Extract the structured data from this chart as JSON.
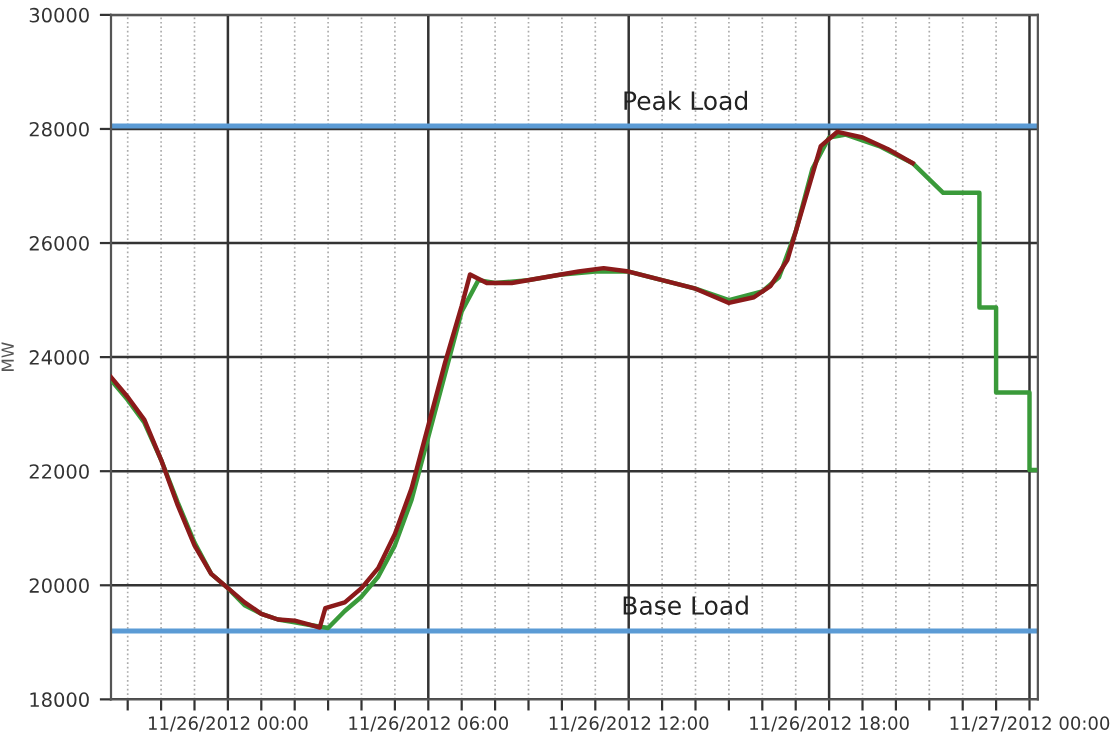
{
  "chart_data": {
    "type": "line",
    "ylabel": "MW",
    "ylim": [
      18000,
      30000
    ],
    "yticks": [
      18000,
      20000,
      22000,
      24000,
      26000,
      28000,
      30000
    ],
    "xlim": [
      "2012-11-25T20:30",
      "2012-11-27T00:15"
    ],
    "xticks": [
      {
        "value": "2012-11-25T21:00",
        "label": null
      },
      {
        "value": "2012-11-25T22:00",
        "label": null
      },
      {
        "value": "2012-11-25T23:00",
        "label": null
      },
      {
        "value": "2012-11-26T00:00",
        "label": "11/26/2012 00:00"
      },
      {
        "value": "2012-11-26T01:00",
        "label": null
      },
      {
        "value": "2012-11-26T02:00",
        "label": null
      },
      {
        "value": "2012-11-26T03:00",
        "label": null
      },
      {
        "value": "2012-11-26T04:00",
        "label": null
      },
      {
        "value": "2012-11-26T05:00",
        "label": null
      },
      {
        "value": "2012-11-26T06:00",
        "label": "11/26/2012 06:00"
      },
      {
        "value": "2012-11-26T07:00",
        "label": null
      },
      {
        "value": "2012-11-26T08:00",
        "label": null
      },
      {
        "value": "2012-11-26T09:00",
        "label": null
      },
      {
        "value": "2012-11-26T10:00",
        "label": null
      },
      {
        "value": "2012-11-26T11:00",
        "label": null
      },
      {
        "value": "2012-11-26T12:00",
        "label": "11/26/2012 12:00"
      },
      {
        "value": "2012-11-26T13:00",
        "label": null
      },
      {
        "value": "2012-11-26T14:00",
        "label": null
      },
      {
        "value": "2012-11-26T15:00",
        "label": null
      },
      {
        "value": "2012-11-26T16:00",
        "label": null
      },
      {
        "value": "2012-11-26T17:00",
        "label": null
      },
      {
        "value": "2012-11-26T18:00",
        "label": "11/26/2012 18:00"
      },
      {
        "value": "2012-11-26T19:00",
        "label": null
      },
      {
        "value": "2012-11-26T20:00",
        "label": null
      },
      {
        "value": "2012-11-26T21:00",
        "label": null
      },
      {
        "value": "2012-11-26T22:00",
        "label": null
      },
      {
        "value": "2012-11-26T23:00",
        "label": null
      },
      {
        "value": "2012-11-27T00:00",
        "label": "11/27/2012 00:00"
      }
    ],
    "grid": true,
    "marker": "none",
    "line_style": "solid",
    "series": [
      {
        "color": "#3a9a3a",
        "x": [
          "2012-11-25T20:30",
          "2012-11-25T21:00",
          "2012-11-25T21:30",
          "2012-11-25T22:00",
          "2012-11-25T22:30",
          "2012-11-25T23:00",
          "2012-11-25T23:30",
          "2012-11-26T00:00",
          "2012-11-26T00:30",
          "2012-11-26T01:00",
          "2012-11-26T01:30",
          "2012-11-26T02:00",
          "2012-11-26T02:30",
          "2012-11-26T03:00",
          "2012-11-26T03:30",
          "2012-11-26T04:00",
          "2012-11-26T04:30",
          "2012-11-26T05:00",
          "2012-11-26T05:30",
          "2012-11-26T06:00",
          "2012-11-26T06:30",
          "2012-11-26T07:00",
          "2012-11-26T07:30",
          "2012-11-26T08:00",
          "2012-11-26T09:00",
          "2012-11-26T10:00",
          "2012-11-26T11:00",
          "2012-11-26T12:00",
          "2012-11-26T13:00",
          "2012-11-26T14:00",
          "2012-11-26T15:00",
          "2012-11-26T16:00",
          "2012-11-26T16:30",
          "2012-11-26T17:00",
          "2012-11-26T17:30",
          "2012-11-26T18:00",
          "2012-11-26T18:30",
          "2012-11-26T19:30",
          "2012-11-26T20:30",
          "2012-11-26T21:25",
          "2012-11-26T22:30",
          "2012-11-26T22:30",
          "2012-11-26T23:00",
          "2012-11-26T23:00",
          "2012-11-27T00:00",
          "2012-11-27T00:00",
          "2012-11-27T00:10"
        ],
        "values": [
          23600,
          23250,
          22850,
          22200,
          21450,
          20750,
          20200,
          19950,
          19650,
          19500,
          19400,
          19350,
          19300,
          19250,
          19550,
          19800,
          20150,
          20700,
          21500,
          22600,
          23700,
          24800,
          25350,
          25300,
          25350,
          25450,
          25500,
          25500,
          25350,
          25200,
          25000,
          25150,
          25400,
          26200,
          27300,
          27850,
          27900,
          27700,
          27400,
          26880,
          26880,
          24870,
          24870,
          23380,
          23380,
          22020,
          22020
        ]
      },
      {
        "color": "#8b1a1a",
        "x": [
          "2012-11-25T20:30",
          "2012-11-25T21:00",
          "2012-11-25T21:30",
          "2012-11-25T22:00",
          "2012-11-25T22:30",
          "2012-11-25T23:00",
          "2012-11-25T23:30",
          "2012-11-26T00:00",
          "2012-11-26T00:30",
          "2012-11-26T01:00",
          "2012-11-26T01:30",
          "2012-11-26T02:00",
          "2012-11-26T02:30",
          "2012-11-26T02:45",
          "2012-11-26T02:55",
          "2012-11-26T03:30",
          "2012-11-26T04:00",
          "2012-11-26T04:30",
          "2012-11-26T05:00",
          "2012-11-26T05:30",
          "2012-11-26T06:00",
          "2012-11-26T06:30",
          "2012-11-26T07:00",
          "2012-11-26T07:15",
          "2012-11-26T07:45",
          "2012-11-26T08:30",
          "2012-11-26T09:30",
          "2012-11-26T10:30",
          "2012-11-26T11:15",
          "2012-11-26T12:00",
          "2012-11-26T13:00",
          "2012-11-26T14:00",
          "2012-11-26T15:00",
          "2012-11-26T15:45",
          "2012-11-26T16:15",
          "2012-11-26T16:45",
          "2012-11-26T17:15",
          "2012-11-26T17:45",
          "2012-11-26T18:15",
          "2012-11-26T19:00",
          "2012-11-26T19:45",
          "2012-11-26T20:30"
        ],
        "values": [
          23650,
          23300,
          22900,
          22200,
          21400,
          20700,
          20200,
          19950,
          19700,
          19500,
          19400,
          19380,
          19300,
          19260,
          19600,
          19700,
          19950,
          20300,
          20900,
          21700,
          22800,
          23900,
          24900,
          25450,
          25300,
          25300,
          25400,
          25500,
          25560,
          25500,
          25350,
          25200,
          24950,
          25050,
          25250,
          25700,
          26700,
          27700,
          27950,
          27850,
          27650,
          27400
        ]
      }
    ],
    "ref_lines": [
      {
        "axis": "y",
        "value": 28050,
        "label": "Peak Load",
        "color": "#5b9bd5"
      },
      {
        "axis": "y",
        "value": 19200,
        "label": "Base Load",
        "color": "#5b9bd5"
      }
    ]
  }
}
